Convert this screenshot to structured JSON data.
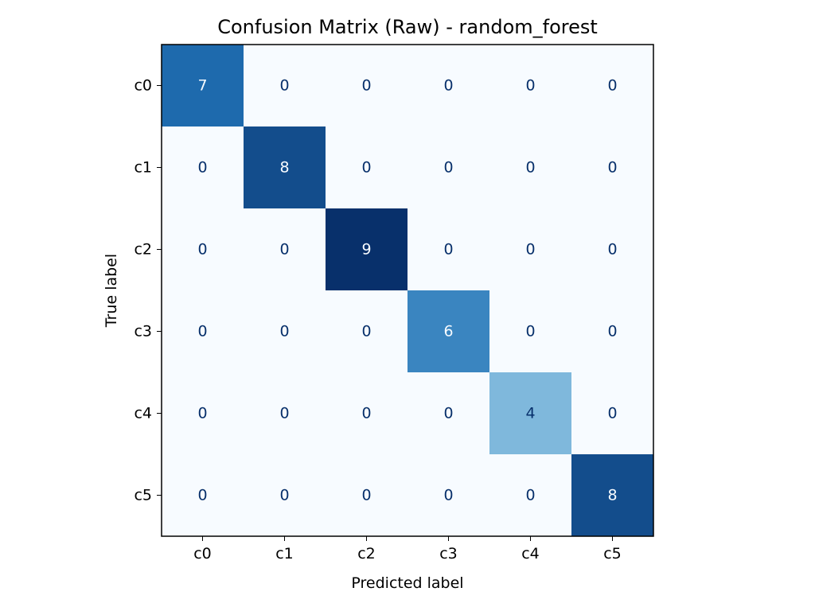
{
  "chart_data": {
    "type": "heatmap",
    "title": "Confusion Matrix (Raw) - random_forest",
    "xlabel": "Predicted label",
    "ylabel": "True label",
    "x_categories": [
      "c0",
      "c1",
      "c2",
      "c3",
      "c4",
      "c5"
    ],
    "y_categories": [
      "c0",
      "c1",
      "c2",
      "c3",
      "c4",
      "c5"
    ],
    "values": [
      [
        7,
        0,
        0,
        0,
        0,
        0
      ],
      [
        0,
        8,
        0,
        0,
        0,
        0
      ],
      [
        0,
        0,
        9,
        0,
        0,
        0
      ],
      [
        0,
        0,
        0,
        6,
        0,
        0
      ],
      [
        0,
        0,
        0,
        0,
        4,
        0
      ],
      [
        0,
        0,
        0,
        0,
        0,
        8
      ]
    ],
    "vmin": 0,
    "vmax": 9,
    "colormap": "Blues",
    "grid": false,
    "legend": "none"
  },
  "colors": {
    "cmap_low": "#f7fbff",
    "cmap_25": "#c6dbef",
    "cmap_50": "#6baed6",
    "cmap_75": "#2171b5",
    "cmap_high": "#08306b",
    "text_dark": "#08306b",
    "text_light": "#f7fbff",
    "frame": "#000000"
  }
}
